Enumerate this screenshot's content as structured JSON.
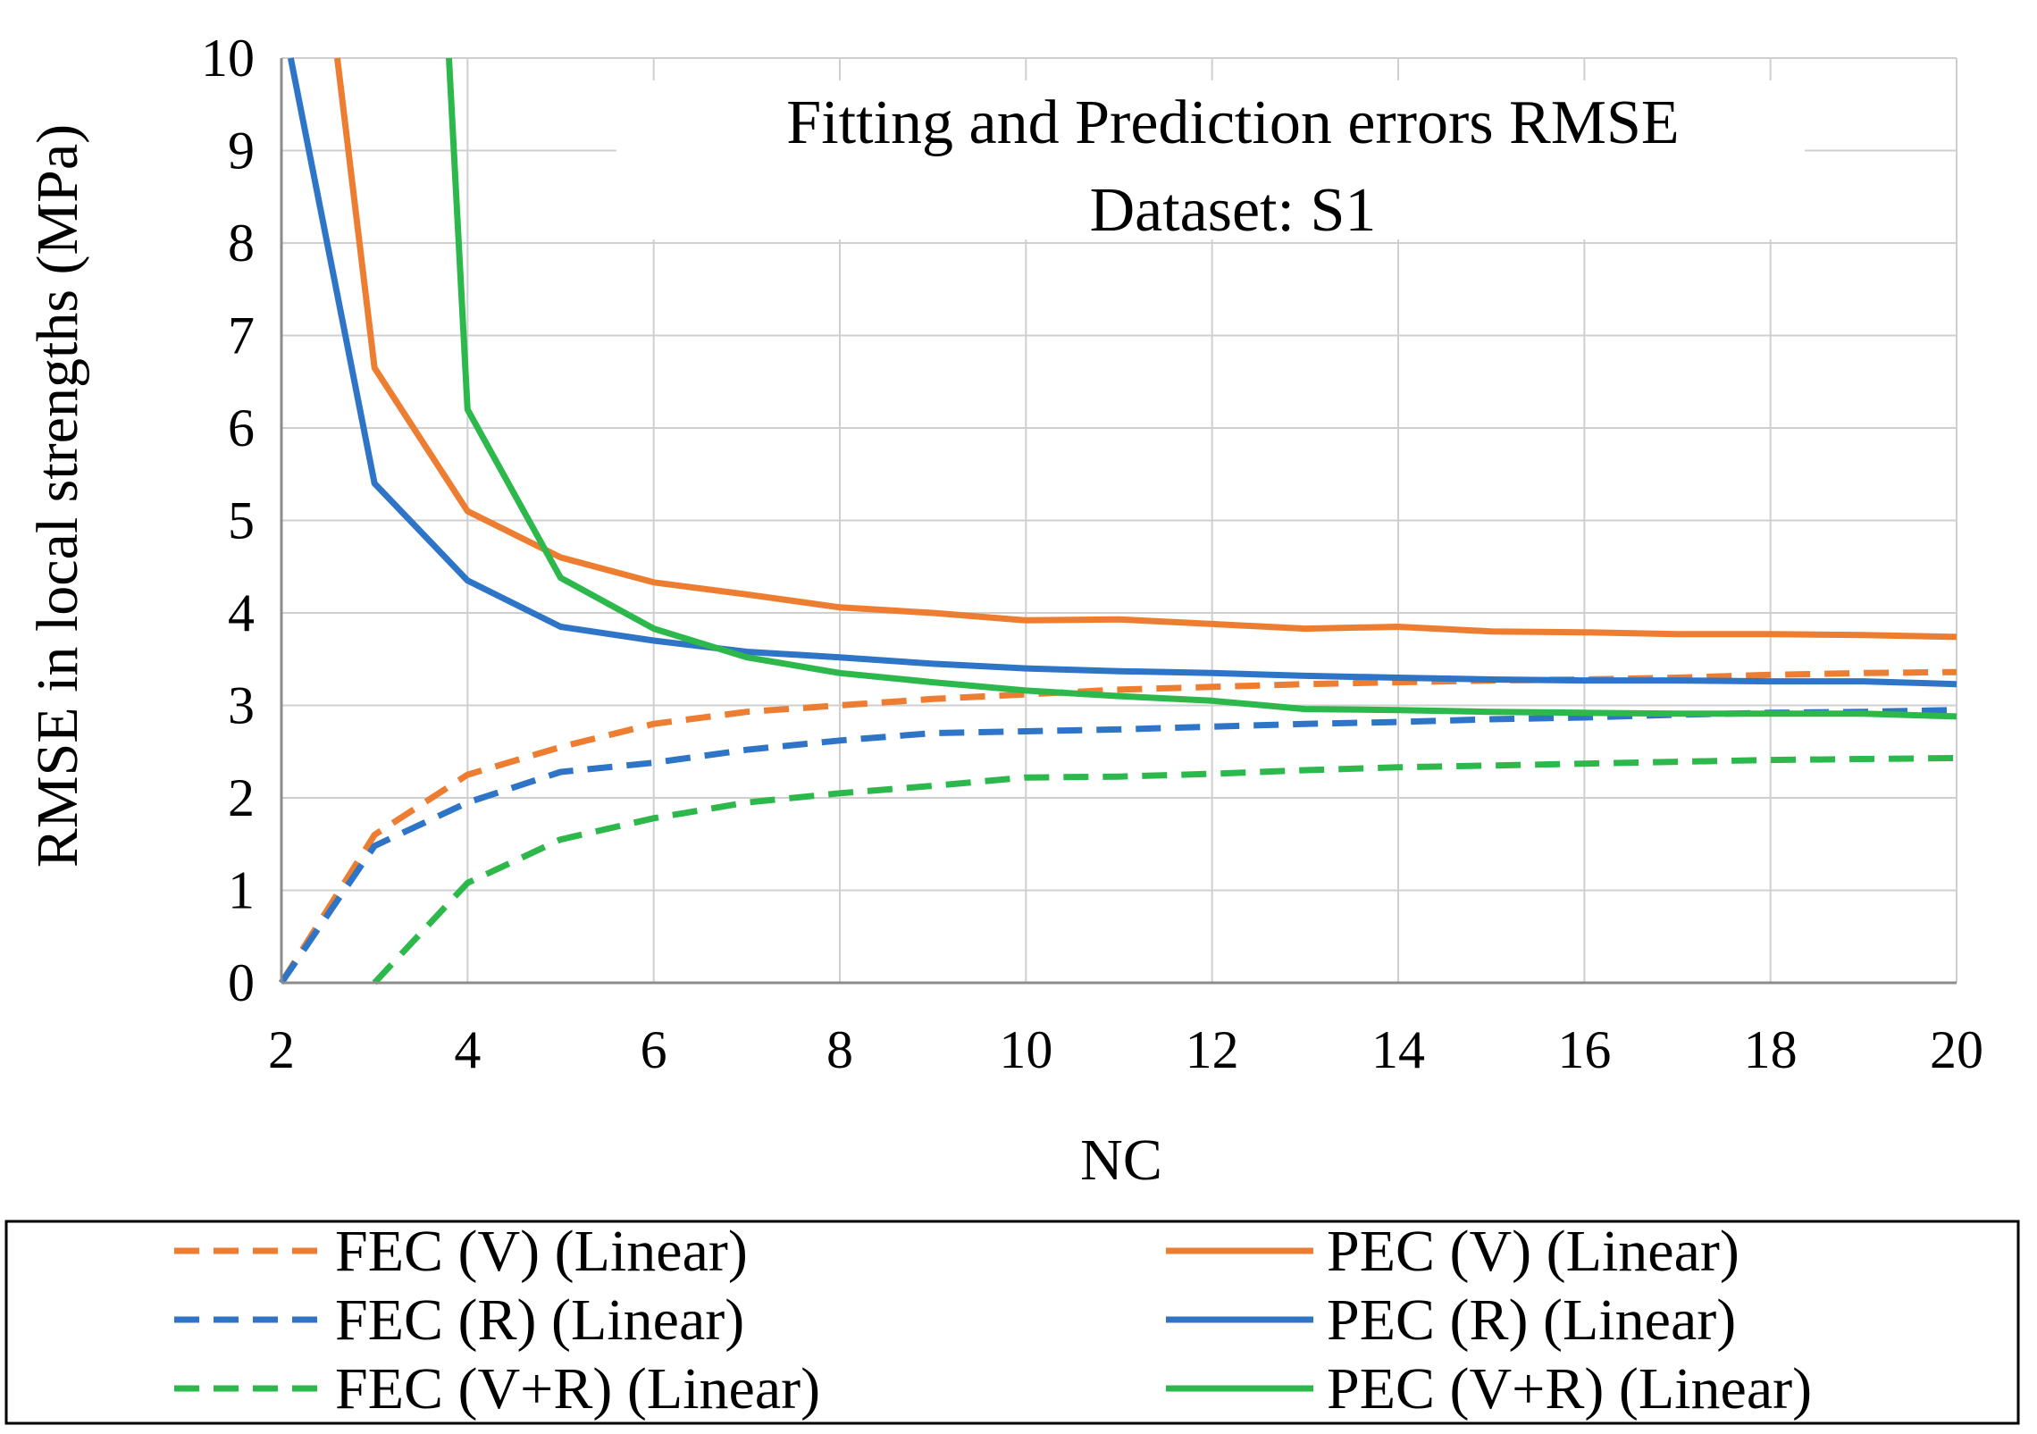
{
  "chart_data": {
    "type": "line",
    "title": "Fitting and Prediction  errors RMSE",
    "subtitle": "Dataset: S1",
    "xlabel": "NC",
    "ylabel": "RMSE in local strengths (MPa)",
    "xlim": [
      2,
      20
    ],
    "ylim": [
      0,
      10
    ],
    "xticks": [
      "2",
      "4",
      "6",
      "8",
      "10",
      "12",
      "14",
      "16",
      "18",
      "20"
    ],
    "yticks": [
      "0",
      "1",
      "2",
      "3",
      "4",
      "5",
      "6",
      "7",
      "8",
      "9",
      "10"
    ],
    "grid": true,
    "legend_position": "bottom",
    "series": [
      {
        "name": "FEC (V) (Linear)",
        "color": "#ED7D31",
        "style": "dashed",
        "x": [
          2,
          3,
          4,
          5,
          6,
          7,
          8,
          9,
          10,
          11,
          12,
          13,
          14,
          15,
          16,
          17,
          18,
          19,
          20
        ],
        "y": [
          0,
          1.6,
          2.25,
          2.55,
          2.8,
          2.93,
          3.0,
          3.07,
          3.12,
          3.17,
          3.2,
          3.23,
          3.25,
          3.27,
          3.28,
          3.3,
          3.33,
          3.35,
          3.36
        ]
      },
      {
        "name": "PEC (V) (Linear)",
        "color": "#ED7D31",
        "style": "solid",
        "x": [
          2.6,
          3,
          4,
          5,
          6,
          7,
          8,
          9,
          10,
          11,
          12,
          13,
          14,
          15,
          16,
          17,
          18,
          19,
          20
        ],
        "y": [
          10,
          6.65,
          5.1,
          4.6,
          4.33,
          4.2,
          4.06,
          4.0,
          3.92,
          3.93,
          3.88,
          3.83,
          3.85,
          3.8,
          3.79,
          3.77,
          3.77,
          3.76,
          3.74
        ]
      },
      {
        "name": "FEC (R) (Linear)",
        "color": "#2E75C8",
        "style": "dashed",
        "x": [
          2,
          3,
          4,
          5,
          6,
          7,
          8,
          9,
          10,
          11,
          12,
          13,
          14,
          15,
          16,
          17,
          18,
          19,
          20
        ],
        "y": [
          0,
          1.48,
          1.95,
          2.28,
          2.38,
          2.52,
          2.62,
          2.7,
          2.72,
          2.74,
          2.77,
          2.8,
          2.82,
          2.85,
          2.87,
          2.9,
          2.92,
          2.93,
          2.95
        ]
      },
      {
        "name": "PEC (R) (Linear)",
        "color": "#2E75C8",
        "style": "solid",
        "x": [
          2.1,
          3,
          4,
          5,
          6,
          7,
          8,
          9,
          10,
          11,
          12,
          13,
          14,
          15,
          16,
          17,
          18,
          19,
          20
        ],
        "y": [
          10,
          5.4,
          4.35,
          3.85,
          3.7,
          3.58,
          3.52,
          3.45,
          3.4,
          3.37,
          3.35,
          3.32,
          3.3,
          3.28,
          3.27,
          3.27,
          3.26,
          3.26,
          3.23
        ]
      },
      {
        "name": "FEC (V+R) (Linear)",
        "color": "#2DB84C",
        "style": "dashed",
        "x": [
          3,
          4,
          5,
          6,
          7,
          8,
          9,
          10,
          11,
          12,
          13,
          14,
          15,
          16,
          17,
          18,
          19,
          20
        ],
        "y": [
          0,
          1.08,
          1.55,
          1.78,
          1.95,
          2.05,
          2.13,
          2.22,
          2.23,
          2.26,
          2.3,
          2.33,
          2.35,
          2.37,
          2.39,
          2.41,
          2.42,
          2.43
        ]
      },
      {
        "name": "PEC (V+R) (Linear)",
        "color": "#2DB84C",
        "style": "solid",
        "x": [
          3.8,
          4,
          5,
          6,
          7,
          8,
          9,
          10,
          11,
          12,
          13,
          14,
          15,
          16,
          17,
          18,
          19,
          20
        ],
        "y": [
          10,
          6.2,
          4.38,
          3.83,
          3.52,
          3.35,
          3.25,
          3.16,
          3.1,
          3.05,
          2.96,
          2.95,
          2.93,
          2.92,
          2.91,
          2.91,
          2.91,
          2.88
        ]
      }
    ]
  }
}
